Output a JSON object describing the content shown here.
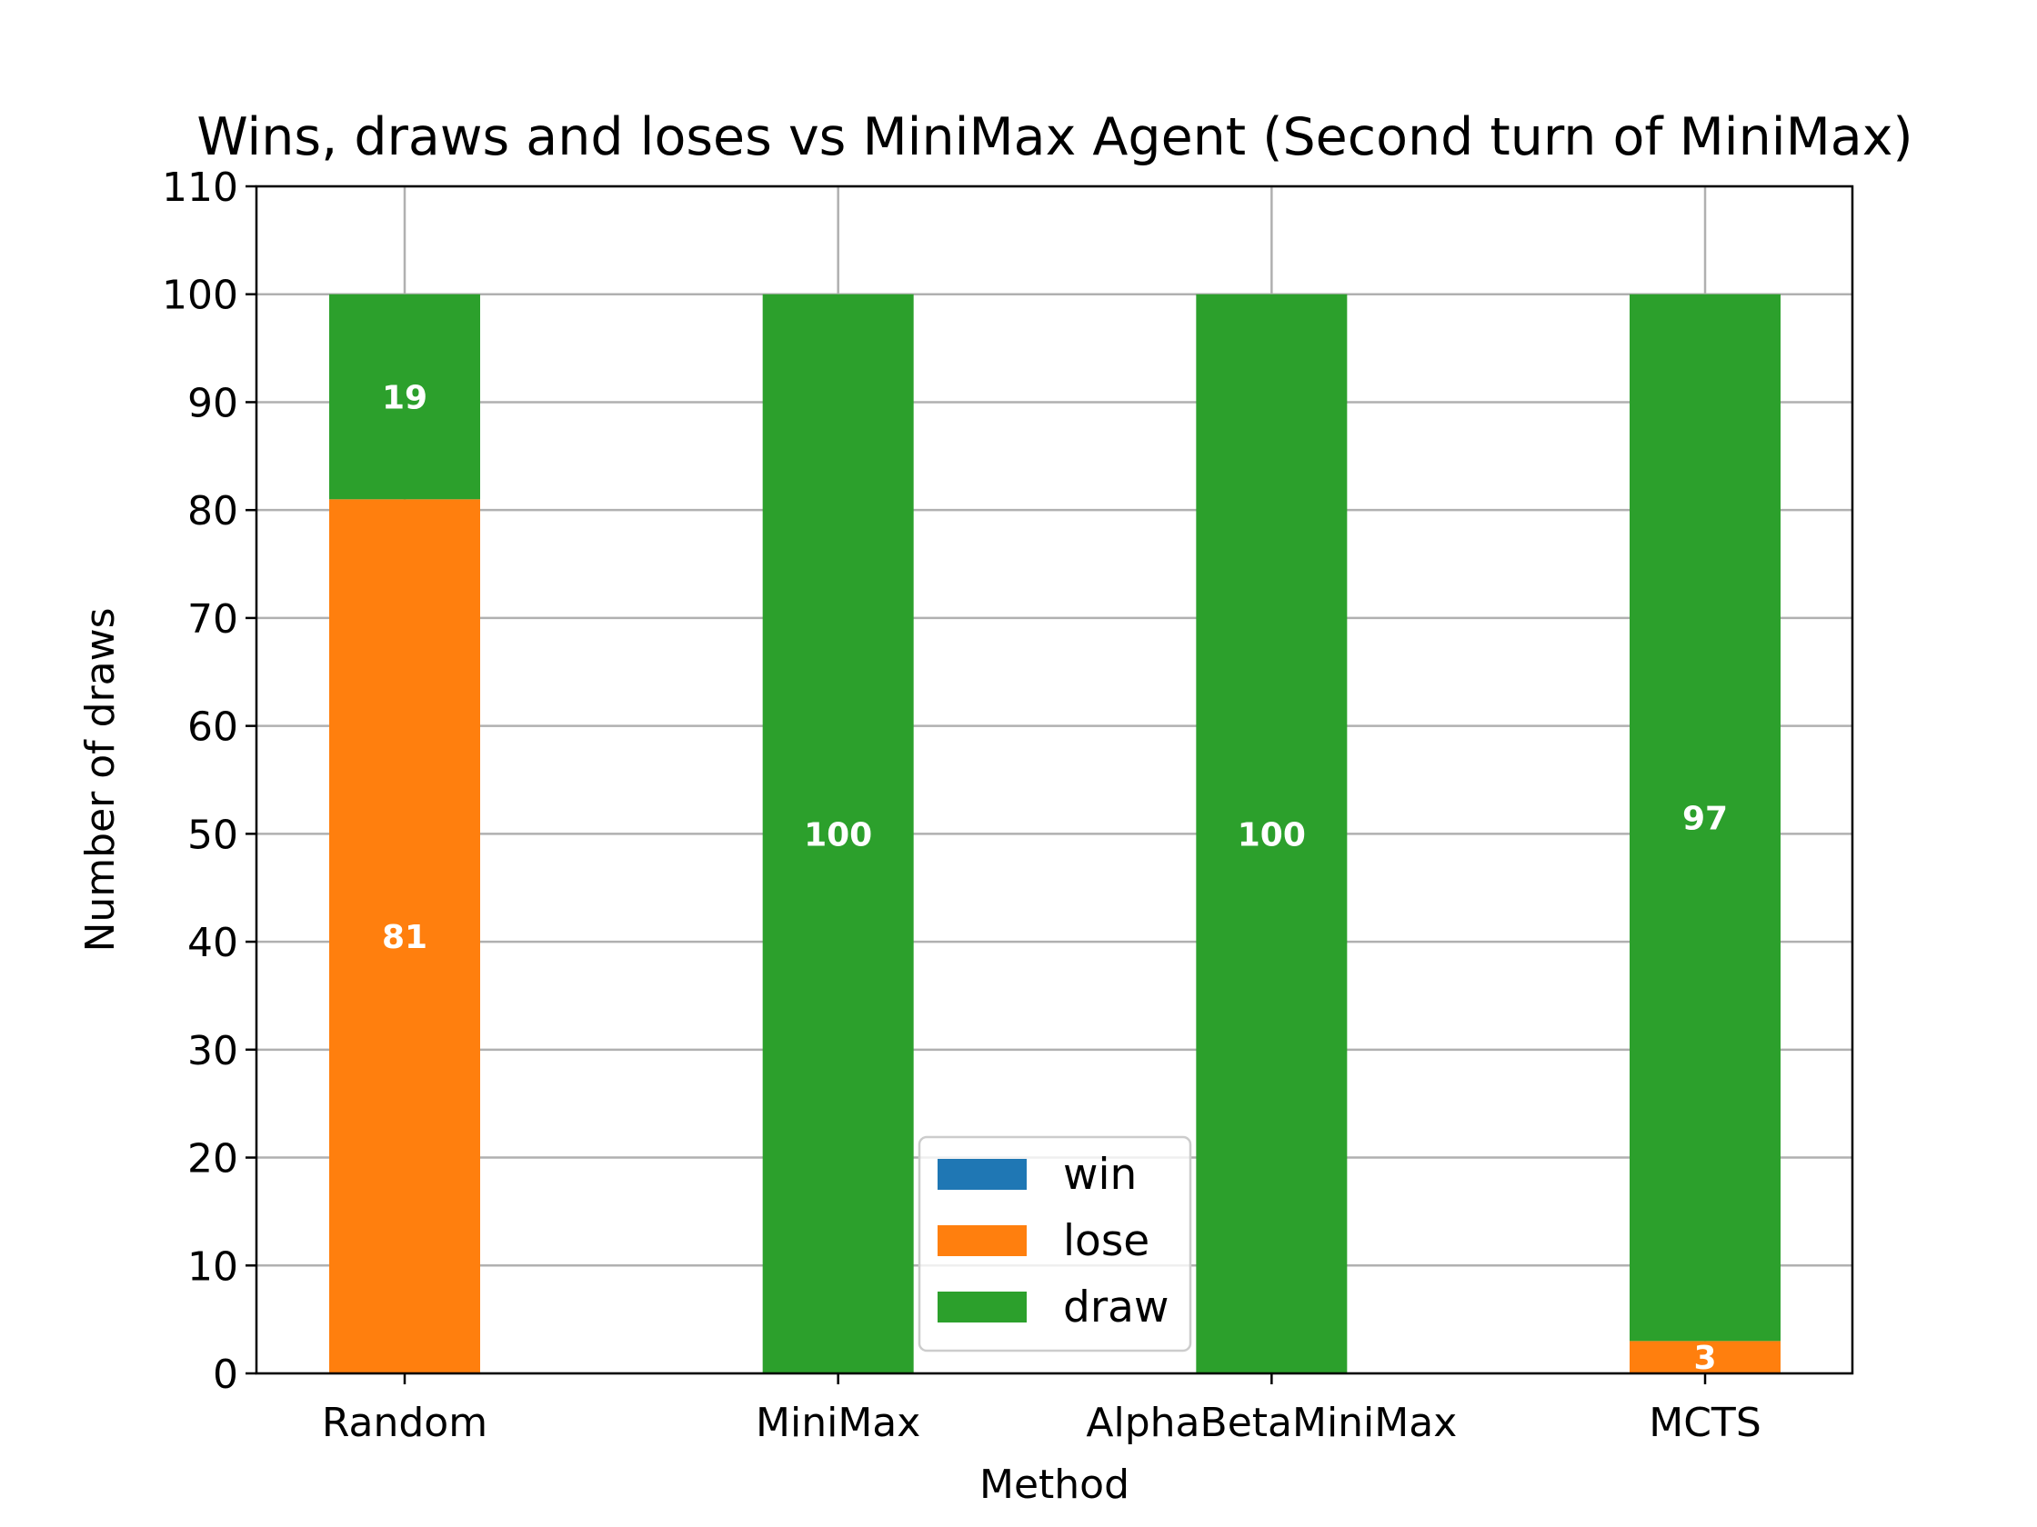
{
  "chart_data": {
    "type": "bar",
    "stacked": true,
    "title": "Wins, draws and loses vs MiniMax Agent (Second turn of MiniMax)",
    "xlabel": "Method",
    "ylabel": "Number of draws",
    "categories": [
      "Random",
      "MiniMax",
      "AlphaBetaMiniMax",
      "MCTS"
    ],
    "series": [
      {
        "name": "win",
        "values": [
          0,
          0,
          0,
          0
        ],
        "color": "#1f77b4"
      },
      {
        "name": "lose",
        "values": [
          81,
          0,
          0,
          3
        ],
        "color": "#ff7f0e"
      },
      {
        "name": "draw",
        "values": [
          19,
          100,
          100,
          97
        ],
        "color": "#2ca02c"
      }
    ],
    "ylim": [
      0,
      110
    ],
    "yticks": [
      0,
      10,
      20,
      30,
      40,
      50,
      60,
      70,
      80,
      90,
      100,
      110
    ],
    "grid": true,
    "legend_position": "lower-center",
    "data_labels": true
  }
}
